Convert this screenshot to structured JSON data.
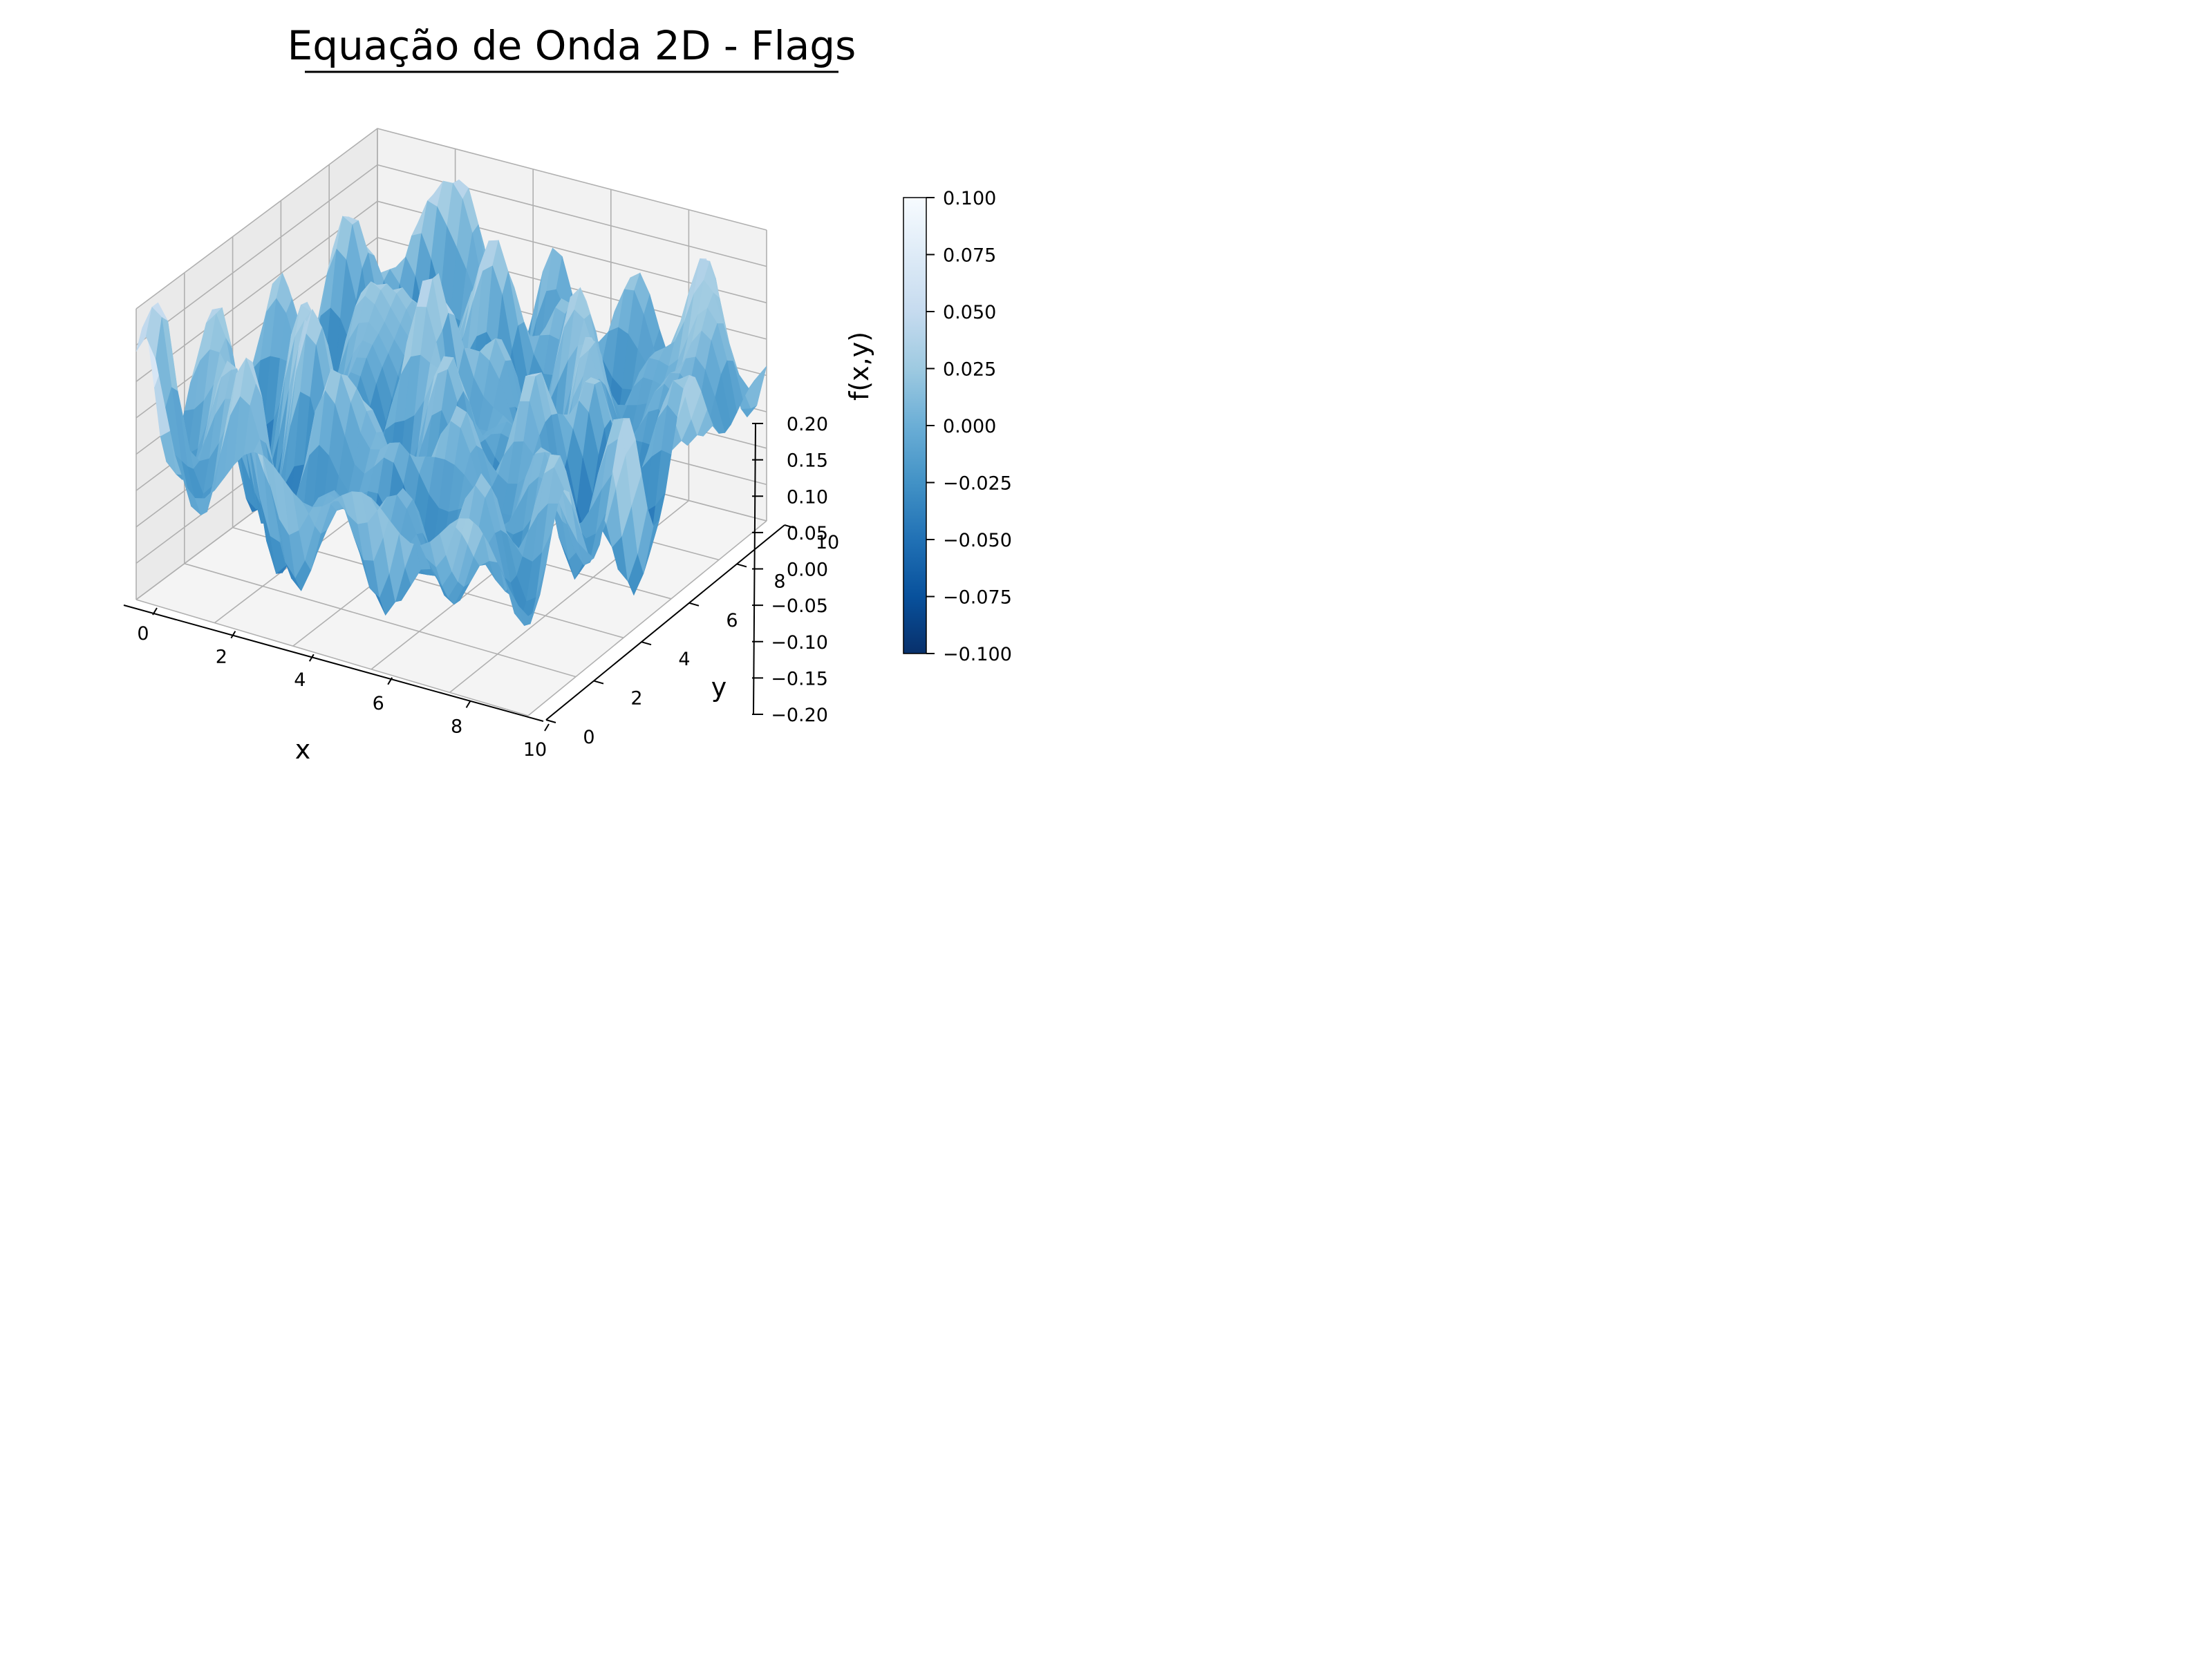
{
  "chart_data": {
    "type": "surface3d",
    "title": "Equação de Onda 2D - Flags",
    "xlabel": "x",
    "ylabel": "y",
    "zlabel": "f(x,y)",
    "xlim": [
      0,
      10
    ],
    "ylim": [
      0,
      10
    ],
    "zlim": [
      -0.2,
      0.2
    ],
    "x_ticks": [
      "0",
      "2",
      "4",
      "6",
      "8",
      "10"
    ],
    "y_ticks": [
      "0",
      "2",
      "4",
      "6",
      "8",
      "10"
    ],
    "z_ticks": [
      "−0.20",
      "−0.15",
      "−0.10",
      "−0.05",
      "0.00",
      "0.05",
      "0.10",
      "0.15",
      "0.20"
    ],
    "colormap": "Blues_r",
    "colorbar": {
      "min": -0.1,
      "max": 0.1,
      "ticks": [
        "−0.100",
        "−0.075",
        "−0.050",
        "−0.025",
        "0.000",
        "0.025",
        "0.050",
        "0.075",
        "0.100"
      ]
    },
    "grid": true,
    "z_range_observed": [
      -0.2,
      0.2
    ],
    "surface_grid_points": 41
  }
}
